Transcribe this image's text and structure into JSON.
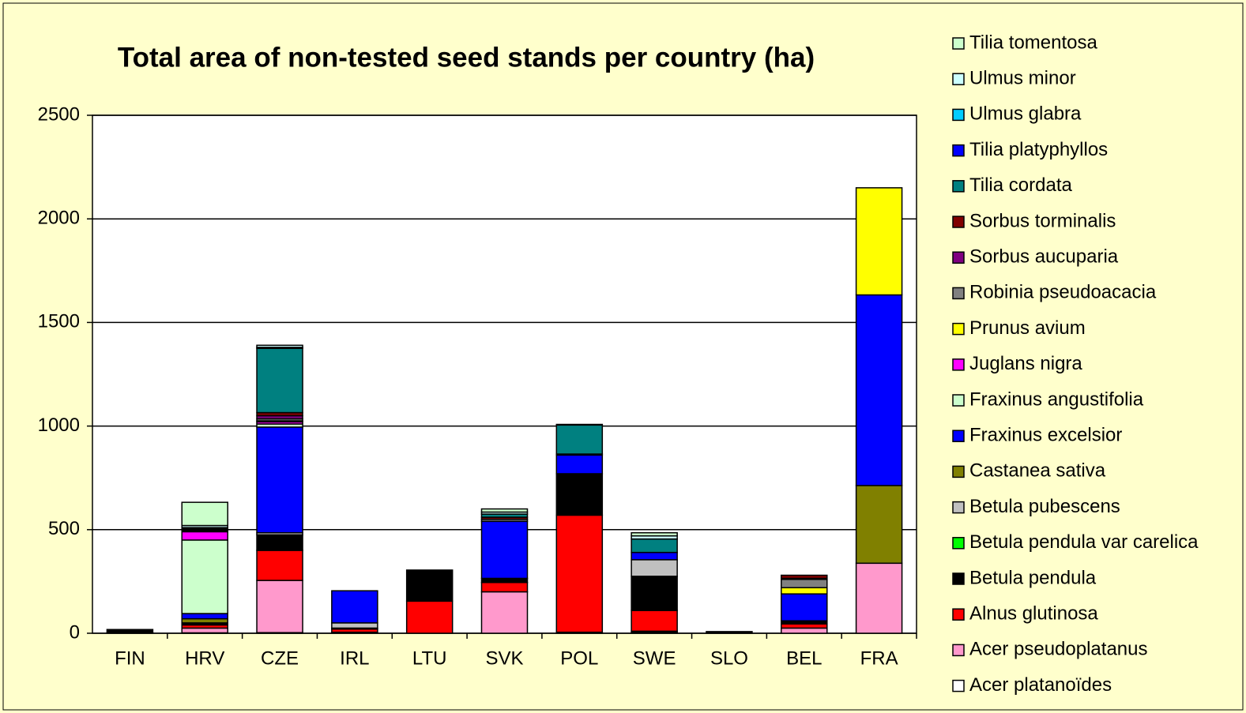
{
  "chart_data": {
    "type": "stacked_bar",
    "title": "Total area of non-tested seed stands per country (ha)",
    "categories": [
      "FIN",
      "HRV",
      "CZE",
      "IRL",
      "LTU",
      "SVK",
      "POL",
      "SWE",
      "SLO",
      "BEL",
      "FRA"
    ],
    "ylim": [
      0,
      2500
    ],
    "yticks": [
      0,
      500,
      1000,
      1500,
      2000,
      2500
    ],
    "grid": true,
    "legend": "right",
    "series": [
      {
        "name": "Acer platanoïdes",
        "color": "#ffffff",
        "values": [
          0,
          2,
          3,
          0,
          0,
          0,
          5,
          5,
          0,
          0,
          0
        ]
      },
      {
        "name": "Acer pseudoplatanus",
        "color": "#ff99cc",
        "values": [
          0,
          23,
          252,
          5,
          0,
          200,
          0,
          5,
          0,
          25,
          338
        ]
      },
      {
        "name": "Alnus glutinosa",
        "color": "#ff0000",
        "values": [
          3,
          15,
          145,
          15,
          155,
          45,
          565,
          100,
          0,
          20,
          0
        ]
      },
      {
        "name": "Betula pendula",
        "color": "#000000",
        "values": [
          15,
          5,
          75,
          5,
          150,
          20,
          200,
          165,
          8,
          15,
          0
        ]
      },
      {
        "name": "Betula pendula var carelica",
        "color": "#00ff00",
        "values": [
          0,
          0,
          0,
          0,
          0,
          0,
          0,
          0,
          0,
          0,
          0
        ]
      },
      {
        "name": "Betula pubescens",
        "color": "#c0c0c0",
        "values": [
          0,
          5,
          10,
          25,
          0,
          0,
          0,
          80,
          0,
          0,
          0
        ]
      },
      {
        "name": "Castanea sativa",
        "color": "#808000",
        "values": [
          0,
          20,
          0,
          0,
          0,
          0,
          0,
          0,
          0,
          0,
          375
        ]
      },
      {
        "name": "Fraxinus excelsior",
        "color": "#0000ff",
        "values": [
          0,
          25,
          510,
          155,
          0,
          275,
          90,
          35,
          0,
          130,
          920
        ]
      },
      {
        "name": "Fraxinus angustifolia",
        "color": "#ccffcc",
        "values": [
          0,
          355,
          15,
          0,
          0,
          0,
          0,
          0,
          0,
          0,
          0
        ]
      },
      {
        "name": "Juglans nigra",
        "color": "#ff00ff",
        "values": [
          0,
          40,
          10,
          0,
          0,
          0,
          0,
          0,
          0,
          0,
          0
        ]
      },
      {
        "name": "Prunus avium",
        "color": "#ffff00",
        "values": [
          0,
          0,
          5,
          0,
          0,
          0,
          0,
          0,
          0,
          30,
          517
        ]
      },
      {
        "name": "Robinia pseudoacacia",
        "color": "#808080",
        "values": [
          0,
          5,
          10,
          0,
          0,
          10,
          0,
          0,
          0,
          40,
          0
        ]
      },
      {
        "name": "Sorbus aucuparia",
        "color": "#800080",
        "values": [
          0,
          0,
          15,
          0,
          0,
          0,
          0,
          0,
          0,
          5,
          0
        ]
      },
      {
        "name": "Sorbus torminalis",
        "color": "#800000",
        "values": [
          0,
          5,
          15,
          0,
          0,
          10,
          5,
          0,
          0,
          15,
          0
        ]
      },
      {
        "name": "Tilia cordata",
        "color": "#008080",
        "values": [
          0,
          5,
          310,
          0,
          0,
          15,
          140,
          65,
          0,
          0,
          0
        ]
      },
      {
        "name": "Tilia platyphyllos",
        "color": "#0000ff",
        "values": [
          0,
          5,
          5,
          0,
          0,
          0,
          0,
          0,
          0,
          0,
          0
        ]
      },
      {
        "name": "Ulmus glabra",
        "color": "#00ccff",
        "values": [
          0,
          0,
          0,
          0,
          0,
          0,
          0,
          0,
          0,
          0,
          0
        ]
      },
      {
        "name": "Ulmus minor",
        "color": "#ccffff",
        "values": [
          0,
          10,
          10,
          0,
          0,
          10,
          0,
          15,
          0,
          0,
          0
        ]
      },
      {
        "name": "Tilia tomentosa",
        "color": "#ccffcc",
        "values": [
          0,
          112,
          0,
          0,
          0,
          15,
          3,
          15,
          0,
          0,
          0
        ]
      }
    ]
  }
}
